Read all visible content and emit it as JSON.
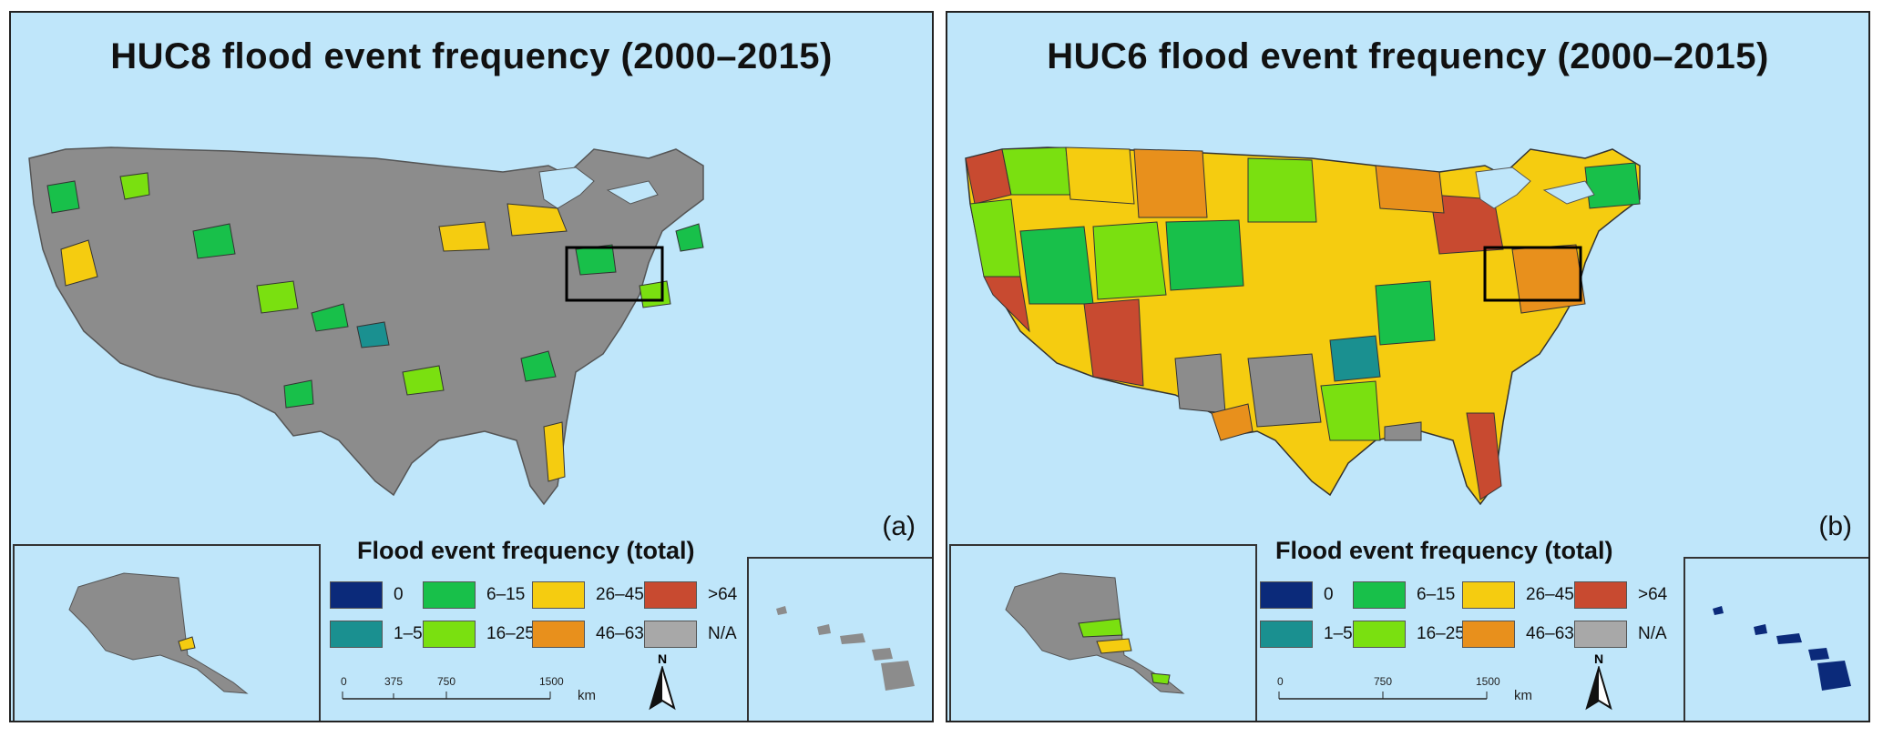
{
  "panels": [
    {
      "title": "HUC8  flood event frequency (2000–2015)",
      "label": "(a)",
      "legend_title": "Flood event frequency (total)",
      "scale_ticks": [
        "0",
        "375",
        "750",
        "1500"
      ],
      "scale_unit": "km",
      "north": "N"
    },
    {
      "title": "HUC6   flood event frequency (2000–2015)",
      "label": "(b)",
      "legend_title": "Flood event frequency (total)",
      "scale_ticks": [
        "0",
        "750",
        "1500"
      ],
      "scale_unit": "km",
      "north": "N"
    }
  ],
  "legend": [
    {
      "label": "0",
      "color": "#0b2a7a"
    },
    {
      "label": "1–5",
      "color": "#1a9090"
    },
    {
      "label": "6–15",
      "color": "#18c04a"
    },
    {
      "label": "16–25",
      "color": "#7ae010"
    },
    {
      "label": "26–45",
      "color": "#f5cc10"
    },
    {
      "label": "46–63",
      "color": "#e8901c"
    },
    {
      "label": ">64",
      "color": "#c84a30"
    },
    {
      "label": "N/A",
      "color": "#a8a8a8"
    }
  ],
  "colors": {
    "water": "#bfe6fa",
    "land": "#8c8c8c"
  }
}
